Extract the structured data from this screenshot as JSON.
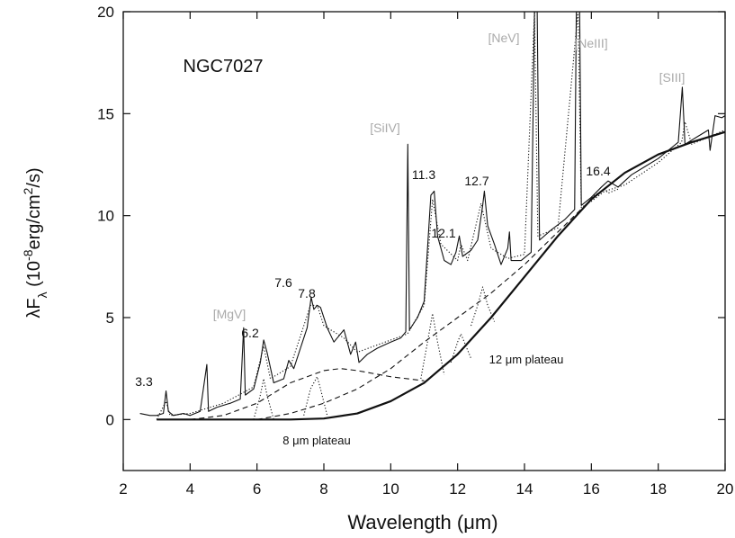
{
  "chart_data": {
    "type": "line",
    "xlabel": "Wavelength (μm)",
    "ylabel": [
      {
        "text": "λF"
      },
      {
        "text": "λ",
        "shift": "sub"
      },
      {
        "text": " (10"
      },
      {
        "text": "-8",
        "shift": "super"
      },
      {
        "text": "erg/cm"
      },
      {
        "text": "2",
        "shift": "super"
      },
      {
        "text": "/s)"
      }
    ],
    "xlim": [
      2,
      20
    ],
    "ylim": [
      -2.5,
      20
    ],
    "xticks": [
      2,
      4,
      6,
      8,
      10,
      12,
      14,
      16,
      18,
      20
    ],
    "yticks": [
      0,
      5,
      10,
      15,
      20
    ],
    "annotations": [
      {
        "text": "NGC7027",
        "color": "#111111"
      },
      {
        "text": "3.3",
        "color": "#111111"
      },
      {
        "text": "[MgV]",
        "color": "#aaaaaa"
      },
      {
        "text": "6.2",
        "color": "#111111"
      },
      {
        "text": "7.6",
        "color": "#111111"
      },
      {
        "text": "7.8",
        "color": "#111111"
      },
      {
        "text": "[SiIV]",
        "color": "#aaaaaa"
      },
      {
        "text": "11.3",
        "color": "#111111"
      },
      {
        "text": "12.1",
        "color": "#111111"
      },
      {
        "text": "12.7",
        "color": "#111111"
      },
      {
        "text": "[NeV]",
        "color": "#aaaaaa"
      },
      {
        "text": "[NeIII]",
        "color": "#aaaaaa"
      },
      {
        "text": "16.4",
        "color": "#111111"
      },
      {
        "text": "[SIII]",
        "color": "#aaaaaa"
      },
      {
        "text": "12 μm plateau",
        "color": "#111111"
      },
      {
        "text": "8 μm plateau",
        "color": "#111111"
      }
    ],
    "series": [
      {
        "style": "solid",
        "color": "#111111",
        "x": [
          2.5,
          2.8,
          3.0,
          3.2,
          3.28,
          3.35,
          3.5,
          3.8,
          4.0,
          4.3,
          4.5,
          4.55,
          4.8,
          5.2,
          5.5,
          5.6,
          5.65,
          5.9,
          6.1,
          6.2,
          6.3,
          6.5,
          6.8,
          6.95,
          7.1,
          7.3,
          7.5,
          7.62,
          7.7,
          7.8,
          7.9,
          8.1,
          8.3,
          8.6,
          8.8,
          8.95,
          9.05,
          9.3,
          9.6,
          10.0,
          10.3,
          10.45,
          10.51,
          10.56,
          10.8,
          11.0,
          11.2,
          11.3,
          11.4,
          11.6,
          11.8,
          11.95,
          12.05,
          12.15,
          12.4,
          12.6,
          12.75,
          12.8,
          12.9,
          13.1,
          13.3,
          13.5,
          13.55,
          13.6,
          13.9,
          14.2,
          14.3,
          14.38,
          14.45,
          14.8,
          15.2,
          15.5,
          15.55,
          15.65,
          15.7,
          16.0,
          16.3,
          16.5,
          16.8,
          17.2,
          17.6,
          18.0,
          18.3,
          18.6,
          18.72,
          18.8,
          19.2,
          19.5,
          19.55,
          19.7,
          19.9,
          20
        ],
        "values": [
          0.3,
          0.2,
          0.2,
          0.3,
          1.4,
          0.4,
          0.2,
          0.3,
          0.2,
          0.4,
          2.7,
          0.4,
          0.6,
          0.8,
          1.0,
          4.5,
          1.2,
          1.5,
          2.8,
          3.9,
          3.3,
          1.8,
          2.0,
          2.9,
          2.5,
          3.5,
          4.5,
          6.0,
          5.4,
          5.6,
          5.5,
          4.5,
          3.8,
          4.4,
          3.2,
          3.8,
          2.8,
          3.2,
          3.5,
          3.8,
          4.0,
          4.3,
          13.5,
          4.4,
          5.0,
          5.8,
          11.0,
          11.2,
          9.0,
          7.8,
          7.6,
          8.2,
          9.0,
          8.0,
          8.3,
          8.8,
          10.5,
          11.2,
          9.5,
          8.6,
          7.6,
          8.4,
          9.2,
          7.8,
          7.8,
          8.2,
          20,
          20,
          8.8,
          9.3,
          9.8,
          10.3,
          20,
          20,
          10.5,
          10.9,
          11.4,
          11.7,
          11.4,
          12.0,
          12.4,
          12.8,
          13.2,
          13.6,
          16.3,
          13.5,
          13.9,
          14.2,
          13.2,
          14.9,
          14.8,
          14.9
        ]
      },
      {
        "style": "dotted",
        "color": "#111111",
        "x": [
          3.0,
          3.28,
          3.4,
          4.0,
          5.0,
          5.9,
          6.2,
          6.4,
          7.0,
          7.6,
          7.8,
          8.0,
          8.6,
          9.0,
          10.0,
          10.5,
          11.0,
          11.25,
          11.5,
          12.0,
          12.1,
          12.3,
          12.7,
          13.0,
          13.5,
          14.0,
          14.3,
          14.4,
          15.0,
          15.6,
          15.7,
          16.0,
          16.4,
          17.0,
          18.0,
          18.7,
          18.8,
          19.0,
          20.0
        ],
        "values": [
          0.0,
          0.9,
          0.2,
          0.3,
          0.8,
          1.6,
          3.6,
          2.0,
          2.6,
          5.6,
          5.6,
          4.6,
          4.0,
          3.3,
          3.9,
          4.2,
          5.6,
          10.8,
          8.6,
          7.8,
          8.6,
          7.8,
          10.6,
          8.4,
          7.9,
          8.1,
          20,
          9.0,
          9.4,
          20,
          10.4,
          10.7,
          11.2,
          11.5,
          12.6,
          13.6,
          14.6,
          13.5,
          14.2
        ]
      },
      {
        "style": "thick",
        "color": "#111111",
        "x": [
          3,
          4,
          5,
          6,
          7,
          8,
          9,
          10,
          11,
          12,
          13,
          14,
          15,
          16,
          17,
          18,
          19,
          20
        ],
        "values": [
          0,
          0,
          0,
          0,
          0,
          0.05,
          0.3,
          0.9,
          1.8,
          3.2,
          5.0,
          7.0,
          9.0,
          10.8,
          12.1,
          13.0,
          13.6,
          14.1
        ]
      },
      {
        "style": "dashed",
        "color": "#111111",
        "x": [
          4,
          5,
          6,
          7,
          8,
          8.5,
          9,
          10,
          11
        ],
        "values": [
          0,
          0.2,
          0.8,
          1.8,
          2.4,
          2.5,
          2.4,
          2.1,
          1.9
        ]
      },
      {
        "style": "dashed",
        "color": "#111111",
        "x": [
          6,
          7,
          8,
          9,
          10,
          11,
          12,
          13,
          14,
          15,
          16,
          17,
          18,
          19,
          20
        ],
        "values": [
          0,
          0.3,
          0.8,
          1.5,
          2.5,
          3.8,
          5.0,
          6.2,
          7.6,
          9.2,
          10.8,
          12.1,
          13.0,
          13.6,
          14.1
        ]
      },
      {
        "style": "dotted",
        "color": "#111111",
        "x": [
          5.9,
          6.1,
          6.2,
          6.3,
          6.5,
          null,
          7.4,
          7.6,
          7.7,
          7.8,
          7.9,
          8.1,
          null,
          10.9,
          11.1,
          11.25,
          11.4,
          11.6,
          null,
          11.8,
          12.0,
          12.1,
          12.2,
          12.4,
          null,
          12.4,
          12.6,
          12.75,
          12.9,
          13.1,
          null,
          16.0,
          16.3,
          16.4,
          16.5,
          16.8
        ],
        "values": [
          0,
          1.2,
          2.0,
          1.2,
          0,
          null,
          0.2,
          1.5,
          1.8,
          2.1,
          1.5,
          0.2,
          null,
          2.0,
          3.8,
          5.2,
          3.8,
          2.2,
          null,
          2.8,
          3.8,
          4.2,
          3.8,
          3.0,
          null,
          4.6,
          5.6,
          6.5,
          5.6,
          4.8,
          null,
          10.9,
          11.2,
          11.3,
          11.1,
          11.3
        ]
      }
    ]
  }
}
